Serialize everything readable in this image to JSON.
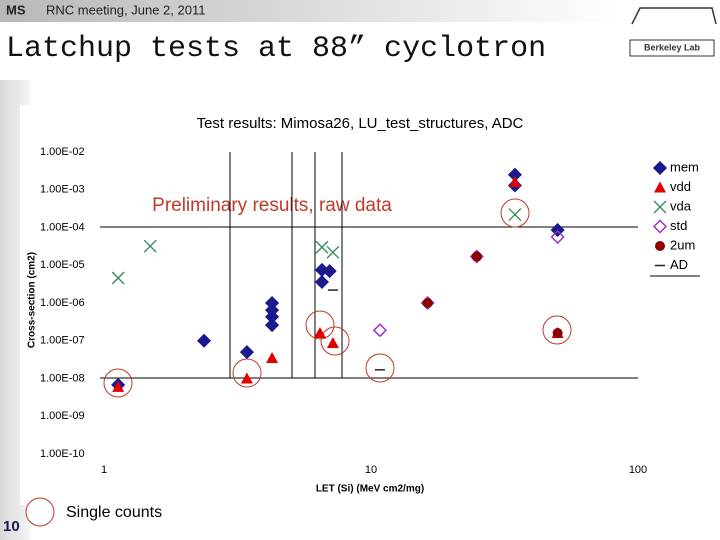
{
  "header": {
    "left": "MS",
    "meeting": "RNC meeting, June 2, 2011"
  },
  "slide_title": "Latchup tests at 88” cyclotron",
  "logo": "Berkeley Lab",
  "page_number": "10",
  "note": "Single counts",
  "chart_data": {
    "type": "scatter",
    "title": "Test results: Mimosa26, LU_test_structures, ADC",
    "annotation": "Preliminary results, raw data",
    "x_label": "LET (Si) (MeV cm2/mg)",
    "y_label": "Cross-section (cm2)",
    "log_x": true,
    "log_y": true,
    "xlim": [
      1,
      100
    ],
    "xticks": [
      1,
      10,
      100
    ],
    "ylim": [
      1e-10,
      0.01
    ],
    "yticks": [
      {
        "value": 0.01,
        "label": "1.00E-02"
      },
      {
        "value": 0.001,
        "label": "1.00E-03"
      },
      {
        "value": 0.0001,
        "label": "1.00E-04"
      },
      {
        "value": 1e-05,
        "label": "1.00E-05"
      },
      {
        "value": 1e-06,
        "label": "1.00E-06"
      },
      {
        "value": 1e-07,
        "label": "1.00E-07"
      },
      {
        "value": 1e-08,
        "label": "1.00E-08"
      },
      {
        "value": 1e-09,
        "label": "1.00E-09"
      },
      {
        "value": 1e-10,
        "label": "1.00E-10"
      }
    ],
    "legend": "right",
    "series": [
      {
        "name": "mem",
        "color": "#1a1a8c",
        "marker": "diamond",
        "x": [
          1.13,
          2.37,
          3.43,
          4.26,
          4.26,
          4.26,
          4.26,
          6.55,
          7.0,
          6.55,
          34.6,
          34.6,
          50
        ],
        "values": [
          6.8e-09,
          1e-07,
          5e-08,
          1e-06,
          6.5e-07,
          4.3e-07,
          2.6e-07,
          7.5e-06,
          7e-06,
          3.6e-06,
          0.0025,
          0.0013,
          8.6e-05
        ]
      },
      {
        "name": "vdd",
        "color": "#e00000",
        "marker": "triangle",
        "x": [
          1.13,
          3.43,
          4.26,
          6.44,
          7.2,
          34.6,
          50
        ],
        "values": [
          6e-09,
          1e-08,
          3.5e-08,
          1.6e-07,
          8.7e-08,
          0.0016,
          1.6e-07
        ]
      },
      {
        "name": "vda",
        "color": "#2e8b57",
        "marker": "x",
        "x": [
          1.13,
          1.49,
          6.55,
          7.2,
          34.6
        ],
        "values": [
          4.6e-06,
          3.2e-05,
          3e-05,
          2.2e-05,
          0.00022
        ]
      },
      {
        "name": "std",
        "color": "#9932cc",
        "marker": "open-diamond",
        "x": [
          10.8,
          16.3,
          24.9,
          50
        ],
        "values": [
          1.9e-07,
          1e-06,
          1.7e-05,
          5.6e-05
        ]
      },
      {
        "name": "2um",
        "color": "#8b0000",
        "marker": "circle",
        "x": [
          16.3,
          24.9,
          50
        ],
        "values": [
          1e-06,
          1.7e-05,
          1.6e-07
        ]
      },
      {
        "name": "AD",
        "color": "#222222",
        "marker": "dash",
        "x": [
          7.2,
          10.8
        ],
        "values": [
          2.2e-06,
          1.7e-08
        ]
      }
    ]
  }
}
